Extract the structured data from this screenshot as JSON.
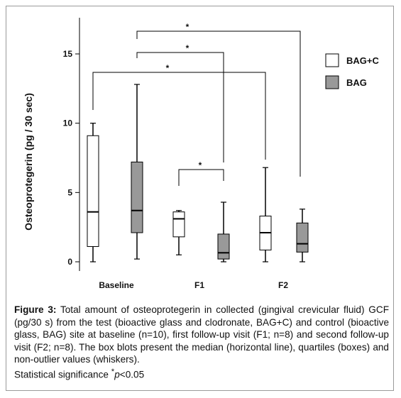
{
  "chart_data": {
    "type": "boxplot",
    "ylabel": "Osteoprotegerin (pg / 30 sec)",
    "ylim": [
      0,
      15
    ],
    "yticks": [
      "0",
      "5",
      "10",
      "15"
    ],
    "categories": [
      "Baseline",
      "F1",
      "F2"
    ],
    "series": [
      {
        "name": "BAG+C",
        "color": "#ffffff",
        "boxes": [
          {
            "min": 0.0,
            "q1": 1.1,
            "median": 3.6,
            "q3": 9.1,
            "max": 10.0
          },
          {
            "min": 0.5,
            "q1": 1.8,
            "median": 3.1,
            "q3": 3.6,
            "max": 3.7
          },
          {
            "min": 0.0,
            "q1": 0.85,
            "median": 2.1,
            "q3": 3.3,
            "max": 6.8
          }
        ]
      },
      {
        "name": "BAG",
        "color": "#999999",
        "boxes": [
          {
            "min": 0.2,
            "q1": 2.1,
            "median": 3.7,
            "q3": 7.2,
            "max": 12.8
          },
          {
            "min": 0.0,
            "q1": 0.2,
            "median": 0.65,
            "q3": 2.0,
            "max": 4.3
          },
          {
            "min": 0.0,
            "q1": 0.7,
            "median": 1.3,
            "q3": 2.8,
            "max": 3.8
          }
        ]
      }
    ],
    "significance": [
      {
        "label": "*",
        "from": "Baseline BAG",
        "to": "F2 BAG"
      },
      {
        "label": "*",
        "from": "Baseline BAG",
        "to": "F1 BAG"
      },
      {
        "label": "*",
        "from": "Baseline BAG+C",
        "to": "F2 BAG+C"
      },
      {
        "label": "*",
        "from": "F1 BAG+C",
        "to": "F1 BAG"
      }
    ],
    "legend_position": "top-right",
    "grid": false
  },
  "caption": {
    "lead": "Figure 3:",
    "body": " Total amount of osteoprotegerin in collected (gingival crevicular fluid) GCF (pg/30 s) from the test (bioactive glass and clodronate, BAG+C) and control (bioactive glass, BAG) site at baseline (n=10), first follow-up visit (F1; n=8) and second follow-up visit (F2; n=8). The box blots present the median (horizontal line), quartiles (boxes) and non-outlier values (whiskers).",
    "sig_text": "Statistical significance ",
    "sig_star": "*",
    "sig_p": "p",
    "sig_value": "<0.05"
  }
}
